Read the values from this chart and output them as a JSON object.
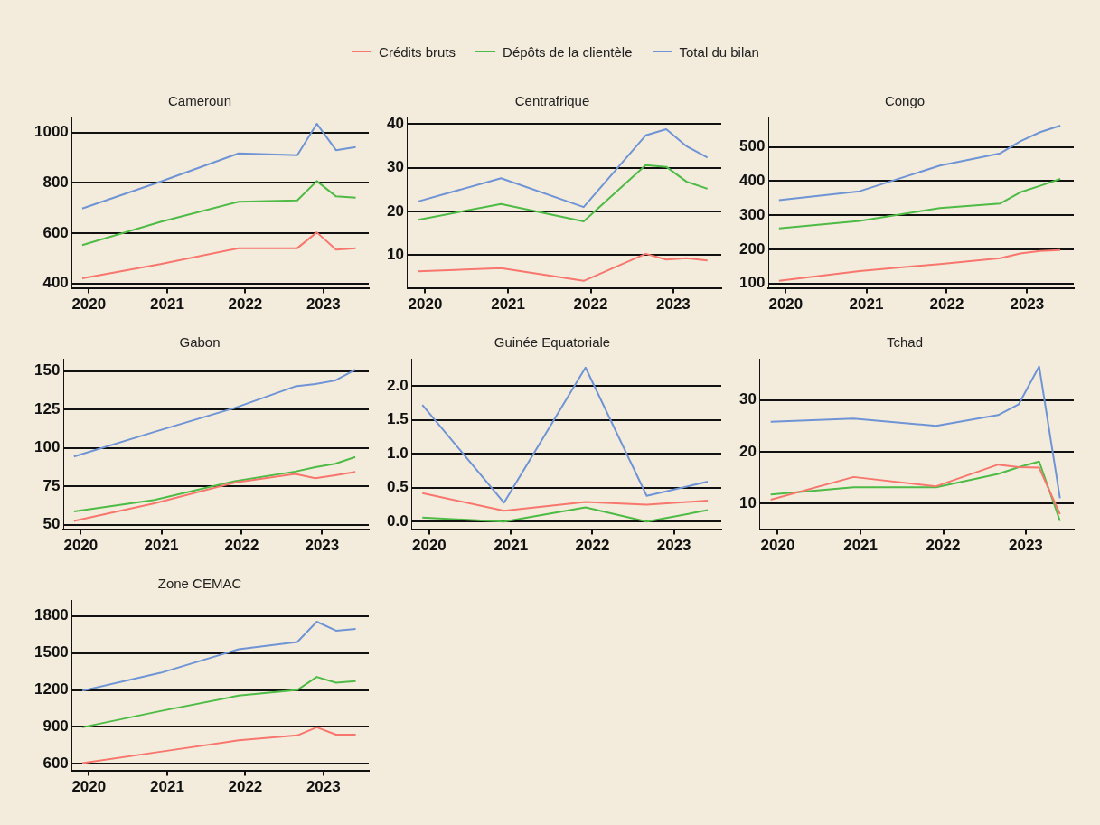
{
  "chart_data": [
    {
      "type": "line",
      "title": "Cameroun",
      "ylim": [
        382,
        1060
      ],
      "legend": "top",
      "grid": "y",
      "x": [
        "2019-12",
        "2020-12",
        "2021-12",
        "2022-09",
        "2022-12",
        "2023-03",
        "2023-06"
      ],
      "xlim": [
        "2019-10-15",
        "2023-08-01"
      ],
      "xticks": [
        "2020",
        "2021",
        "2022",
        "2023"
      ],
      "yticks": [
        400,
        600,
        800,
        1000
      ],
      "series": [
        {
          "name": "Crédits bruts",
          "color": "#f8766d",
          "values": [
            420,
            477,
            540,
            540,
            603,
            534,
            540
          ]
        },
        {
          "name": "Dépôts de la clientèle",
          "color": "#4dbb45",
          "values": [
            552,
            645,
            725,
            730,
            807,
            746,
            741
          ]
        },
        {
          "name": "Total du bilan",
          "color": "#6f94d6",
          "values": [
            698,
            805,
            917,
            910,
            1035,
            930,
            942
          ]
        }
      ]
    },
    {
      "type": "line",
      "title": "Centrafrique",
      "ylim": [
        2.5,
        41.5
      ],
      "grid": "y",
      "x": [
        "2019-12",
        "2020-12",
        "2021-12",
        "2022-09",
        "2022-12",
        "2023-03",
        "2023-06"
      ],
      "xlim": [
        "2019-10-15",
        "2023-08-01"
      ],
      "xticks": [
        "2020",
        "2021",
        "2022",
        "2023"
      ],
      "yticks": [
        10,
        20,
        30,
        40
      ],
      "series": [
        {
          "color": "#f8766d",
          "values": [
            6.3,
            7.0,
            4.1,
            10.3,
            9.0,
            9.3,
            8.8
          ]
        },
        {
          "color": "#4dbb45",
          "values": [
            18.1,
            21.7,
            17.7,
            30.6,
            30.2,
            26.8,
            25.2
          ]
        },
        {
          "color": "#6f94d6",
          "values": [
            22.3,
            27.6,
            21.0,
            37.4,
            38.8,
            34.9,
            32.3
          ]
        }
      ]
    },
    {
      "type": "line",
      "title": "Congo",
      "ylim": [
        87,
        586
      ],
      "grid": "y",
      "x": [
        "2019-12",
        "2020-12",
        "2021-12",
        "2022-09",
        "2022-12",
        "2023-03",
        "2023-06"
      ],
      "xlim": [
        "2019-10-15",
        "2023-08-01"
      ],
      "xticks": [
        "2020",
        "2021",
        "2022",
        "2023"
      ],
      "yticks": [
        100,
        200,
        300,
        400,
        500
      ],
      "series": [
        {
          "color": "#f8766d",
          "values": [
            108,
            136,
            157,
            174,
            188,
            195,
            198
          ]
        },
        {
          "color": "#4dbb45",
          "values": [
            261,
            283,
            321,
            334,
            367,
            386,
            406
          ]
        },
        {
          "color": "#6f94d6",
          "values": [
            344,
            370,
            445,
            481,
            516,
            543,
            562
          ]
        }
      ]
    },
    {
      "type": "line",
      "title": "Gabon",
      "ylim": [
        47,
        158
      ],
      "grid": "y",
      "x": [
        "2019-12",
        "2020-12",
        "2021-12",
        "2022-09",
        "2022-12",
        "2023-03",
        "2023-06"
      ],
      "xlim": [
        "2019-10-15",
        "2023-08-01"
      ],
      "xticks": [
        "2020",
        "2021",
        "2022",
        "2023"
      ],
      "yticks": [
        50,
        75,
        100,
        125,
        150
      ],
      "series": [
        {
          "color": "#f8766d",
          "values": [
            52.3,
            63.8,
            77.4,
            83.0,
            80.2,
            82.1,
            84.3
          ]
        },
        {
          "color": "#4dbb45",
          "values": [
            58.5,
            66.0,
            78.3,
            84.5,
            87.4,
            89.6,
            94.0
          ]
        },
        {
          "color": "#6f94d6",
          "values": [
            94.3,
            110.4,
            126.0,
            140.0,
            141.5,
            143.8,
            150.9
          ]
        }
      ]
    },
    {
      "type": "line",
      "title": "Guinée Equatoriale",
      "ylim": [
        -0.11,
        2.4
      ],
      "grid": "y",
      "x": [
        "2019-12",
        "2020-12",
        "2021-12",
        "2022-09",
        "2023-06"
      ],
      "xlim": [
        "2019-10-15",
        "2023-08-01"
      ],
      "xticks": [
        "2020",
        "2021",
        "2022",
        "2023"
      ],
      "yticks": [
        {
          "value": 0,
          "label": "0.0"
        },
        {
          "value": 0.5,
          "label": "0.5"
        },
        {
          "value": 1,
          "label": "1.0"
        },
        {
          "value": 1.5,
          "label": "1.5"
        },
        {
          "value": 2,
          "label": "2.0"
        }
      ],
      "series": [
        {
          "color": "#f8766d",
          "values": [
            0.42,
            0.16,
            0.29,
            0.25,
            0.31
          ]
        },
        {
          "color": "#4dbb45",
          "values": [
            0.06,
            0.0,
            0.21,
            0.0,
            0.17
          ]
        },
        {
          "color": "#6f94d6",
          "values": [
            1.72,
            0.28,
            2.27,
            0.38,
            0.59
          ]
        }
      ]
    },
    {
      "type": "line",
      "title": "Tchad",
      "ylim": [
        5,
        38
      ],
      "grid": "y",
      "x": [
        "2019-12",
        "2020-12",
        "2021-12",
        "2022-09",
        "2022-12",
        "2023-03",
        "2023-06"
      ],
      "xlim": [
        "2019-10-15",
        "2023-08-01"
      ],
      "xticks": [
        "2020",
        "2021",
        "2022",
        "2023"
      ],
      "yticks": [
        10,
        20,
        30
      ],
      "series": [
        {
          "color": "#f8766d",
          "values": [
            10.7,
            15.1,
            13.3,
            17.5,
            17.0,
            16.9,
            7.9
          ]
        },
        {
          "color": "#4dbb45",
          "values": [
            11.7,
            13.1,
            13.1,
            15.7,
            17.0,
            18.1,
            6.6
          ]
        },
        {
          "color": "#6f94d6",
          "values": [
            25.8,
            26.4,
            25.0,
            27.1,
            29.2,
            36.5,
            11.0
          ]
        }
      ]
    },
    {
      "type": "line",
      "title": "Zone CEMAC",
      "ylim": [
        547,
        1930
      ],
      "grid": "y",
      "x": [
        "2019-12",
        "2020-12",
        "2021-12",
        "2022-09",
        "2022-12",
        "2023-03",
        "2023-06"
      ],
      "xlim": [
        "2019-10-15",
        "2023-08-01"
      ],
      "xticks": [
        "2020",
        "2021",
        "2022",
        "2023"
      ],
      "yticks": [
        600,
        900,
        1200,
        1500,
        1800
      ],
      "series": [
        {
          "color": "#f8766d",
          "values": [
            607,
            699,
            791,
            831,
            897,
            837,
            837
          ]
        },
        {
          "color": "#4dbb45",
          "values": [
            897,
            1029,
            1154,
            1200,
            1306,
            1259,
            1272
          ]
        },
        {
          "color": "#6f94d6",
          "values": [
            1194,
            1339,
            1530,
            1589,
            1754,
            1681,
            1695
          ]
        }
      ]
    }
  ]
}
